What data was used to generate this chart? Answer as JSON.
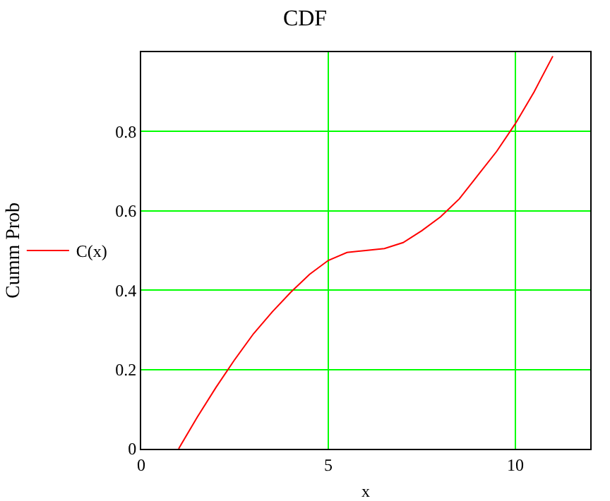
{
  "chart_data": {
    "type": "line",
    "title": "CDF",
    "xlabel": "x",
    "ylabel": "Cumm Prob",
    "x": [
      1,
      1.5,
      2,
      2.5,
      3,
      3.5,
      4,
      4.5,
      5,
      5.5,
      6,
      6.5,
      7,
      7.5,
      8,
      8.5,
      9,
      9.5,
      10,
      10.5,
      11
    ],
    "series": [
      {
        "name": "C(x)",
        "color": "#ff0000",
        "values": [
          0,
          0.08,
          0.155,
          0.225,
          0.29,
          0.345,
          0.395,
          0.44,
          0.475,
          0.495,
          0.5,
          0.505,
          0.52,
          0.55,
          0.585,
          0.63,
          0.69,
          0.75,
          0.82,
          0.9,
          0.99
        ]
      }
    ],
    "xlim": [
      0,
      12
    ],
    "xticks": [
      0,
      5,
      10
    ],
    "ylim": [
      0,
      1
    ],
    "yticks": [
      0,
      0.2,
      0.4,
      0.6,
      0.8
    ],
    "grid": true,
    "legend": "left",
    "marker": "none",
    "line_style": "solid"
  }
}
